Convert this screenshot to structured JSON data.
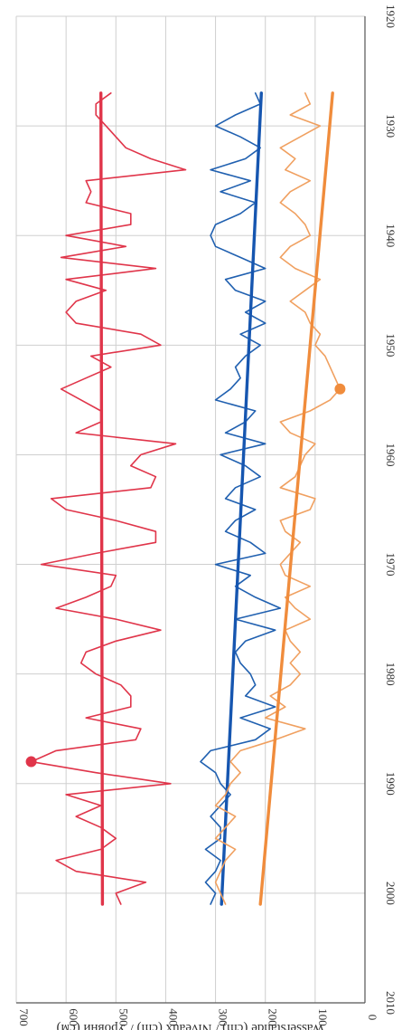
{
  "chart_data": {
    "type": "line",
    "title": "",
    "xlabel": "",
    "ylabel": "Wasserstände (cm) / Niveaux (cm) / Уровни (см)",
    "xlim": [
      1920,
      2010
    ],
    "ylim": [
      0,
      700
    ],
    "x_ticks": [
      "1920",
      "1930",
      "1940",
      "1950",
      "1960",
      "1970",
      "1980",
      "1990",
      "2000",
      "2010"
    ],
    "y_ticks": [
      "0",
      "100",
      "200",
      "300",
      "400",
      "500",
      "600",
      "700"
    ],
    "grid": true,
    "orientation": "rotated 90° clockwise (x axis runs top to bottom on the right)",
    "series": [
      {
        "color": "#e0354a",
        "x": [
          1927,
          1928,
          1929,
          1930,
          1931,
          1932,
          1933,
          1934,
          1935,
          1936,
          1937,
          1938,
          1939,
          1940,
          1941,
          1942,
          1943,
          1944,
          1945,
          1946,
          1947,
          1948,
          1949,
          1950,
          1951,
          1952,
          1953,
          1954,
          1955,
          1956,
          1957,
          1958,
          1959,
          1960,
          1961,
          1962,
          1963,
          1964,
          1965,
          1966,
          1967,
          1968,
          1969,
          1970,
          1971,
          1972,
          1973,
          1974,
          1975,
          1976,
          1977,
          1978,
          1979,
          1980,
          1981,
          1982,
          1983,
          1984,
          1985,
          1986,
          1987,
          1988,
          1989,
          1990,
          1991,
          1992,
          1993,
          1994,
          1995,
          1996,
          1997,
          1998,
          1999,
          2000,
          2001
        ],
        "values": [
          510,
          540,
          540,
          520,
          500,
          480,
          430,
          360,
          560,
          550,
          560,
          470,
          470,
          600,
          480,
          610,
          420,
          600,
          520,
          580,
          600,
          580,
          450,
          410,
          550,
          510,
          560,
          610,
          570,
          530,
          530,
          580,
          380,
          450,
          470,
          420,
          430,
          630,
          600,
          500,
          420,
          420,
          540,
          650,
          500,
          510,
          560,
          620,
          500,
          410,
          500,
          560,
          570,
          540,
          490,
          470,
          470,
          560,
          450,
          460,
          620,
          670,
          540,
          390,
          600,
          530,
          580,
          530,
          500,
          530,
          620,
          580,
          440,
          500,
          490
        ]
      },
      {
        "color": "#e0354a",
        "x": [
          1927,
          2001
        ],
        "values": [
          530,
          527
        ]
      },
      {
        "color": "#2060b0",
        "x": [
          1927,
          1928,
          1929,
          1930,
          1931,
          1932,
          1933,
          1934,
          1935,
          1936,
          1937,
          1938,
          1939,
          1940,
          1941,
          1942,
          1943,
          1944,
          1945,
          1946,
          1947,
          1948,
          1949,
          1950,
          1951,
          1952,
          1953,
          1954,
          1955,
          1956,
          1957,
          1958,
          1959,
          1960,
          1961,
          1962,
          1963,
          1964,
          1965,
          1966,
          1967,
          1968,
          1969,
          1970,
          1971,
          1972,
          1973,
          1974,
          1975,
          1976,
          1977,
          1978,
          1979,
          1980,
          1981,
          1982,
          1983,
          1984,
          1985,
          1986,
          1987,
          1988,
          1989,
          1990,
          1991,
          1992,
          1993,
          1994,
          1995,
          1996,
          1997,
          1998,
          1999,
          2000,
          2001
        ],
        "values": [
          220,
          210,
          260,
          300,
          250,
          210,
          240,
          310,
          230,
          290,
          220,
          250,
          300,
          310,
          300,
          250,
          200,
          280,
          260,
          200,
          240,
          200,
          250,
          210,
          240,
          260,
          250,
          270,
          300,
          220,
          240,
          280,
          200,
          290,
          240,
          210,
          260,
          280,
          220,
          260,
          280,
          230,
          200,
          300,
          230,
          260,
          220,
          170,
          260,
          180,
          240,
          260,
          250,
          230,
          220,
          240,
          180,
          250,
          190,
          220,
          310,
          330,
          300,
          290,
          270,
          290,
          310,
          290,
          290,
          320,
          290,
          300,
          320,
          300,
          310
        ]
      },
      {
        "color": "#1656b0",
        "x": [
          1927,
          2001
        ],
        "values": [
          208,
          288
        ]
      },
      {
        "color": "#f0a060",
        "x": [
          1927,
          1928,
          1929,
          1930,
          1931,
          1932,
          1933,
          1934,
          1935,
          1936,
          1937,
          1938,
          1939,
          1940,
          1941,
          1942,
          1943,
          1944,
          1945,
          1946,
          1947,
          1948,
          1949,
          1950,
          1951,
          1952,
          1953,
          1954,
          1955,
          1956,
          1957,
          1958,
          1959,
          1960,
          1961,
          1962,
          1963,
          1964,
          1965,
          1966,
          1967,
          1968,
          1969,
          1970,
          1971,
          1972,
          1973,
          1974,
          1975,
          1976,
          1977,
          1978,
          1979,
          1980,
          1981,
          1982,
          1983,
          1984,
          1985,
          1986,
          1987,
          1988,
          1989,
          1990,
          1991,
          1992,
          1993,
          1994,
          1995,
          1996,
          1997,
          1998,
          1999,
          2000,
          2001
        ],
        "values": [
          120,
          110,
          150,
          90,
          130,
          170,
          140,
          160,
          110,
          150,
          170,
          140,
          120,
          110,
          150,
          170,
          140,
          90,
          120,
          150,
          120,
          110,
          90,
          100,
          80,
          70,
          60,
          50,
          70,
          110,
          170,
          150,
          100,
          120,
          130,
          140,
          170,
          100,
          110,
          170,
          160,
          130,
          150,
          170,
          160,
          110,
          160,
          140,
          110,
          160,
          150,
          130,
          150,
          130,
          150,
          190,
          160,
          200,
          120,
          180,
          250,
          270,
          250,
          270,
          280,
          300,
          260,
          280,
          300,
          260,
          280,
          290,
          300,
          290,
          280
        ]
      },
      {
        "color": "#f08c3c",
        "x": [
          1927,
          2001
        ],
        "values": [
          65,
          210
        ]
      }
    ],
    "markers": [
      {
        "x": 1988,
        "y": 670,
        "color": "#e0354a"
      },
      {
        "x": 1954,
        "y": 50,
        "color": "#f08c3c"
      }
    ]
  }
}
